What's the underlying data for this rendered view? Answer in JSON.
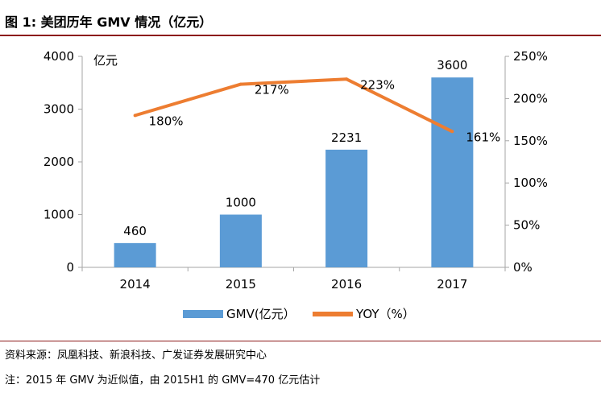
{
  "figure": {
    "title": "图 1:  美团历年 GMV 情况（亿元）",
    "source": "资料来源：凤凰科技、新浪科技、广发证券发展研究中心",
    "note": "注：2015 年 GMV 为近似值，由 2015H1 的 GMV=470 亿元估计"
  },
  "colors": {
    "bar": "#5b9bd5",
    "line": "#ed7d31",
    "axis": "#a6a6a6",
    "rule": "#8c1a1a"
  },
  "chart_data": {
    "type": "bar",
    "categories": [
      "2014",
      "2015",
      "2016",
      "2017"
    ],
    "series": [
      {
        "name": "GMV(亿元）",
        "type": "bar",
        "axis": "left",
        "values": [
          460,
          1000,
          2231,
          3600
        ],
        "labels": [
          "460",
          "1000",
          "2231",
          "3600"
        ]
      },
      {
        "name": "YOY（%）",
        "type": "line",
        "axis": "right",
        "values": [
          180,
          217,
          223,
          161
        ],
        "labels": [
          "180%",
          "217%",
          "223%",
          "161%"
        ]
      }
    ],
    "ylabel": "亿元",
    "ylim": [
      0,
      4000
    ],
    "yticks": [
      "0",
      "1000",
      "2000",
      "3000",
      "4000"
    ],
    "y2lim": [
      0,
      250
    ],
    "y2ticks": [
      "0%",
      "50%",
      "100%",
      "150%",
      "200%",
      "250%"
    ],
    "grid": false,
    "legend": "bottom"
  }
}
